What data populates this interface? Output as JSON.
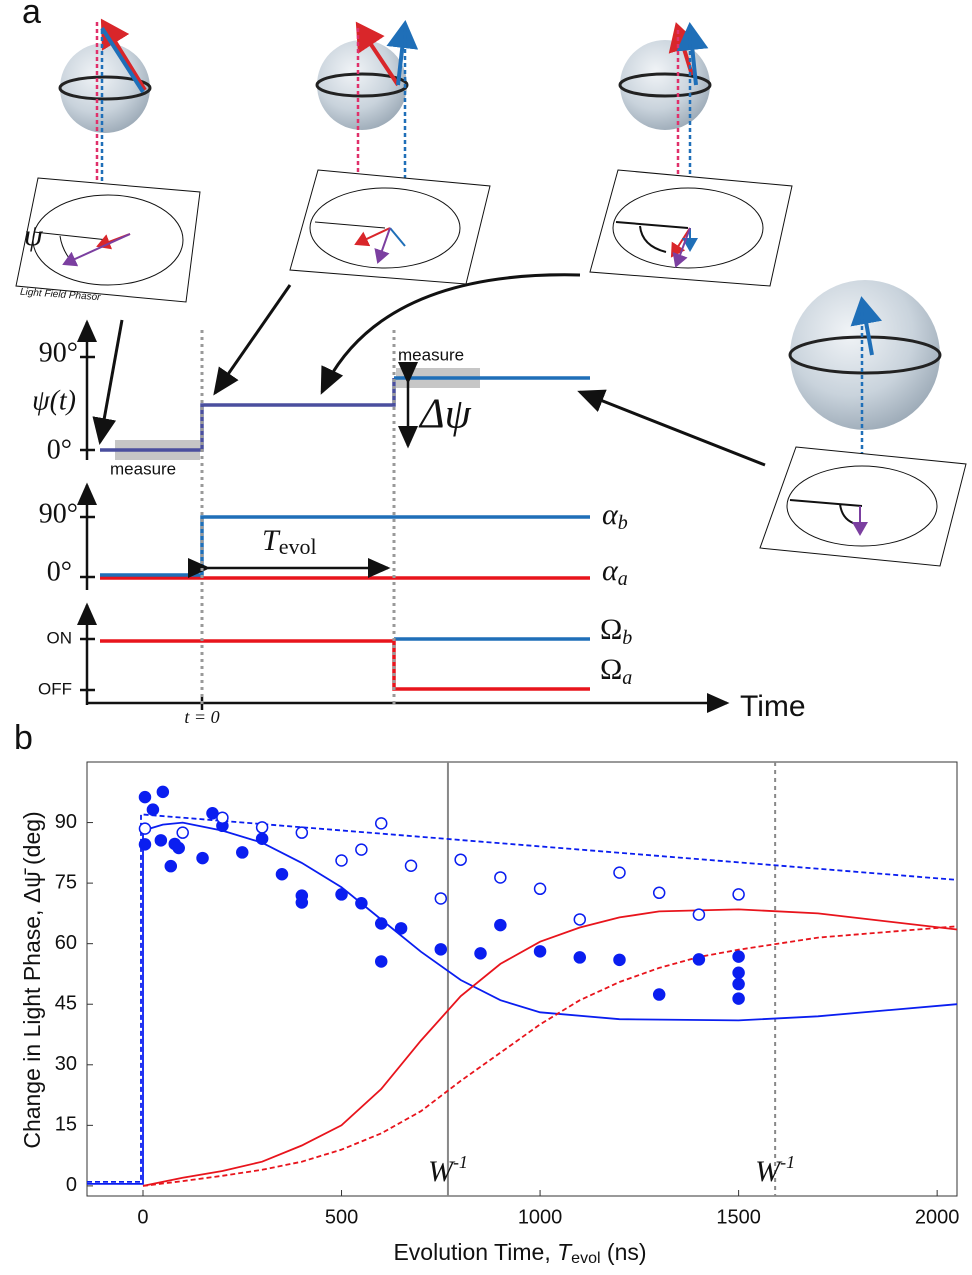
{
  "diagram": {
    "panel_label": "a",
    "phasor_caption": "Light Field Phasor",
    "psi": "ψ",
    "psi_tick_90": "90°",
    "psi_axis": "ψ(t)",
    "psi_tick_0": "0°",
    "measure_1": "measure",
    "measure_2": "measure",
    "delta_psi": "Δψ",
    "alpha_tick_90": "90°",
    "alpha_tick_0": "0°",
    "t_evol": {
      "main": "T",
      "sub": "evol"
    },
    "alpha_b": {
      "main": "α",
      "sub": "b"
    },
    "alpha_a": {
      "main": "α",
      "sub": "a"
    },
    "on": "ON",
    "off": "OFF",
    "omega_b": {
      "main": "Ω",
      "sub": "b"
    },
    "omega_a": {
      "main": "Ω",
      "sub": "a"
    },
    "time": "Time",
    "t_zero": "t = 0"
  },
  "chart_data": {
    "type": "scatter",
    "panel_label": "b",
    "xlabel": [
      "Evolution Time, ",
      "T",
      "evol",
      " (ns)"
    ],
    "ylabel": "Change in Light Phase, Δψ̄ (deg)",
    "xlim": [
      -141,
      2050
    ],
    "ylim": [
      -2.5,
      105
    ],
    "xticks": [
      0,
      500,
      1000,
      1500,
      2000
    ],
    "yticks": [
      0,
      15,
      30,
      45,
      60,
      75,
      90
    ],
    "vlines": [
      {
        "x": 768,
        "style": "solid",
        "color": "#888888",
        "label": [
          "W",
          "-1"
        ]
      },
      {
        "x": 1592,
        "style": "dashed",
        "color": "#888888",
        "label": [
          "W",
          "-1"
        ]
      }
    ],
    "series": [
      {
        "mode": "markers",
        "filled": true,
        "color": "#0a1ef0",
        "x": [
          5,
          5,
          25,
          50,
          45,
          70,
          80,
          90,
          150,
          175,
          200,
          250,
          300,
          350,
          400,
          400,
          500,
          550,
          600,
          600,
          650,
          750,
          850,
          900,
          1000,
          1100,
          1200,
          1300,
          1400,
          1500,
          1500,
          1500,
          1500
        ],
        "values": [
          96.3,
          84.6,
          93.2,
          97.6,
          85.6,
          79.2,
          84.7,
          83.7,
          81.2,
          92.3,
          89.2,
          82.6,
          86.0,
          77.2,
          71.9,
          70.2,
          72.2,
          70.0,
          65.0,
          55.6,
          63.8,
          58.6,
          57.6,
          64.6,
          58.1,
          56.6,
          56.0,
          47.4,
          56.1,
          56.8,
          52.8,
          50.0,
          46.4
        ]
      },
      {
        "mode": "markers",
        "filled": false,
        "color": "#0a1ef0",
        "x": [
          5,
          100,
          200,
          300,
          400,
          500,
          550,
          600,
          675,
          750,
          800,
          900,
          1000,
          1100,
          1200,
          1300,
          1400,
          1500
        ],
        "values": [
          88.5,
          87.5,
          91.2,
          88.8,
          87.5,
          80.6,
          83.3,
          89.8,
          79.3,
          71.2,
          80.8,
          76.4,
          73.6,
          66.0,
          77.6,
          72.6,
          67.2,
          72.2
        ]
      },
      {
        "mode": "line",
        "dashed": false,
        "color": "#0a1ef0",
        "x": [
          -141,
          0,
          0,
          50,
          100,
          200,
          300,
          400,
          500,
          600,
          700,
          800,
          900,
          1000,
          1200,
          1500,
          1700,
          2050
        ],
        "values": [
          0.5,
          0.5,
          88,
          89.5,
          90,
          88,
          85,
          80,
          74,
          66,
          58,
          51,
          46,
          43,
          41.3,
          41,
          42,
          45
        ]
      },
      {
        "mode": "line",
        "dashed": true,
        "color": "#0a1ef0",
        "x": [
          -141,
          -5,
          -5,
          0,
          2050
        ],
        "values": [
          1,
          1,
          92,
          92,
          75.8
        ]
      },
      {
        "mode": "line",
        "dashed": false,
        "color": "#e8141c",
        "x": [
          0,
          100,
          200,
          300,
          400,
          500,
          600,
          700,
          800,
          900,
          1000,
          1100,
          1200,
          1300,
          1500,
          1700,
          2050
        ],
        "values": [
          0,
          2,
          3.7,
          6,
          10,
          15,
          24,
          36,
          47,
          55,
          60.5,
          64,
          66.5,
          68,
          68.5,
          67.5,
          63.5
        ]
      },
      {
        "mode": "line",
        "dashed": true,
        "color": "#e8141c",
        "x": [
          0,
          100,
          200,
          300,
          400,
          500,
          600,
          700,
          800,
          900,
          1000,
          1100,
          1200,
          1300,
          1400,
          1500,
          1700,
          2050
        ],
        "values": [
          0,
          1.2,
          2.5,
          4,
          6,
          9,
          13,
          18.5,
          26,
          33,
          40,
          46,
          50.5,
          54,
          56.7,
          58.5,
          61.5,
          64.3
        ]
      }
    ]
  }
}
